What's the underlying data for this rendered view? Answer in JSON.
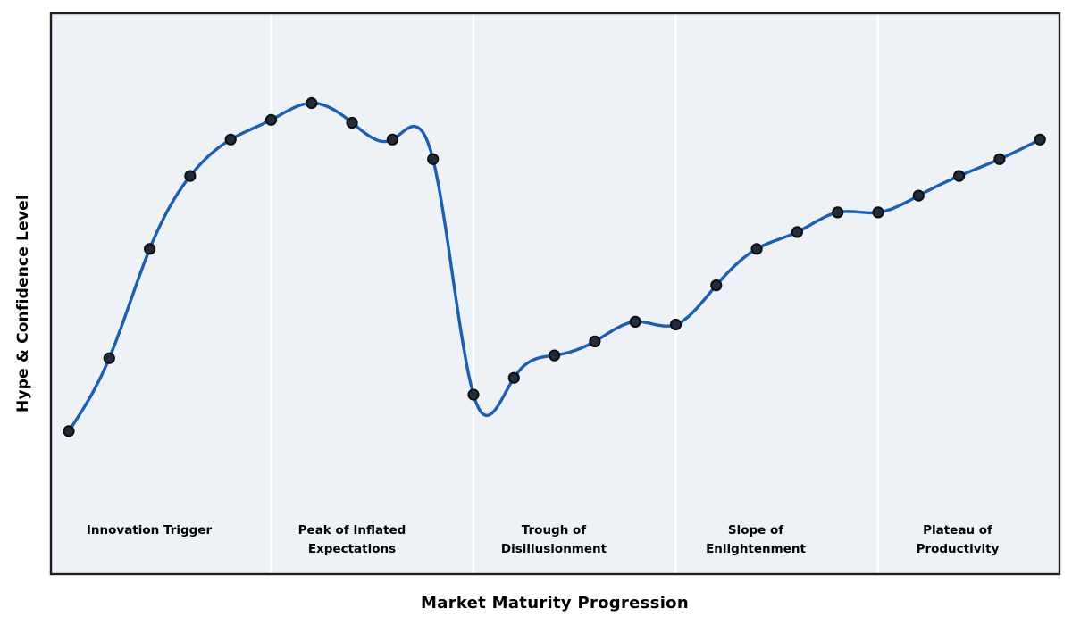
{
  "chart_data": {
    "type": "line",
    "title": "",
    "xlabel": "Market Maturity Progression",
    "ylabel": "Hype & Confidence Level",
    "x": [
      1,
      2,
      3,
      4,
      5,
      6,
      7,
      8,
      9,
      10,
      11,
      12,
      13,
      14,
      15,
      16,
      17,
      18,
      19,
      20,
      21,
      22,
      23,
      24,
      25
    ],
    "y": [
      25.5,
      38.5,
      58,
      71,
      77.5,
      81,
      84,
      80.5,
      77.5,
      74,
      32,
      35,
      39,
      41.5,
      45,
      44.5,
      51.5,
      58,
      61,
      64.5,
      64.5,
      67.5,
      71,
      74,
      77.5
    ],
    "ylim": [
      0,
      100
    ],
    "smoothing": "natural-cubic-spline",
    "grid": false,
    "legend": "none",
    "axis_ticks": "none",
    "marker": "circle",
    "phases": [
      {
        "label": "Innovation Trigger",
        "x_range": [
          1,
          5
        ]
      },
      {
        "label": "Peak of Inflated\nExpectations",
        "x_range": [
          6,
          10
        ]
      },
      {
        "label": "Trough of\nDisillusionment",
        "x_range": [
          11,
          15
        ]
      },
      {
        "label": "Slope of\nEnlightenment",
        "x_range": [
          16,
          20
        ]
      },
      {
        "label": "Plateau of\nProductivity",
        "x_range": [
          21,
          25
        ]
      }
    ],
    "separator_x": [
      6,
      11,
      16,
      21
    ],
    "colors": {
      "line": "#1a5fb0",
      "marker_fill": "#242c3a",
      "marker_edge": "#0b0f14",
      "plot_background": "#eef1f6",
      "separator": "#ffffff",
      "border": "#1f1f1f",
      "text": "#000000",
      "page_background": "#ffffff"
    }
  }
}
